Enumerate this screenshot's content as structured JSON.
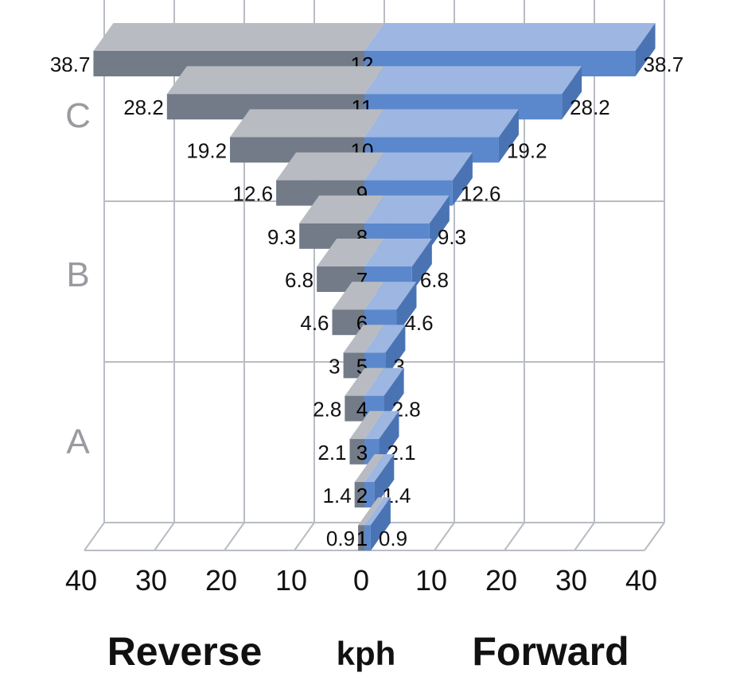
{
  "chart_data": {
    "type": "bar",
    "orientation": "horizontal",
    "diverging": true,
    "style": "3d",
    "grid": true,
    "xlim": [
      -40,
      40
    ],
    "x_ticks": [
      "40",
      "30",
      "20",
      "10",
      "0",
      "10",
      "20",
      "30",
      "40"
    ],
    "x_tick_values": [
      -40,
      -30,
      -20,
      -10,
      0,
      10,
      20,
      30,
      40
    ],
    "categories": [
      "12",
      "11",
      "10",
      "9",
      "8",
      "7",
      "6",
      "5",
      "4",
      "3",
      "2",
      "1"
    ],
    "series": [
      {
        "name": "Reverse",
        "values": [
          38.7,
          28.2,
          19.2,
          12.6,
          9.3,
          6.8,
          4.6,
          3,
          2.8,
          2.1,
          1.4,
          0.9
        ]
      },
      {
        "name": "Forward",
        "values": [
          38.7,
          28.2,
          19.2,
          12.6,
          9.3,
          6.8,
          4.6,
          3,
          2.8,
          2.1,
          1.4,
          0.9
        ]
      }
    ],
    "value_labels": [
      "38.7",
      "28.2",
      "19.2",
      "12.6",
      "9.3",
      "6.8",
      "4.6",
      "3",
      "2.8",
      "2.1",
      "1.4",
      "0.9"
    ],
    "range_groups": [
      {
        "label": "C",
        "gears": [
          "12",
          "11",
          "10",
          "9"
        ]
      },
      {
        "label": "B",
        "gears": [
          "8",
          "7",
          "6",
          "5"
        ]
      },
      {
        "label": "A",
        "gears": [
          "4",
          "3",
          "2",
          "1"
        ]
      }
    ],
    "bottom_labels": {
      "left": "Reverse",
      "center": "kph",
      "right": "Forward"
    },
    "colors": {
      "reverse_front": "#737b88",
      "reverse_top": "#b8bcc2",
      "forward_front": "#5b88cc",
      "forward_top": "#9db6e2",
      "forward_side": "#4a73b3",
      "grid": "#b9bcc4",
      "group_label": "#9a9aa0"
    }
  }
}
